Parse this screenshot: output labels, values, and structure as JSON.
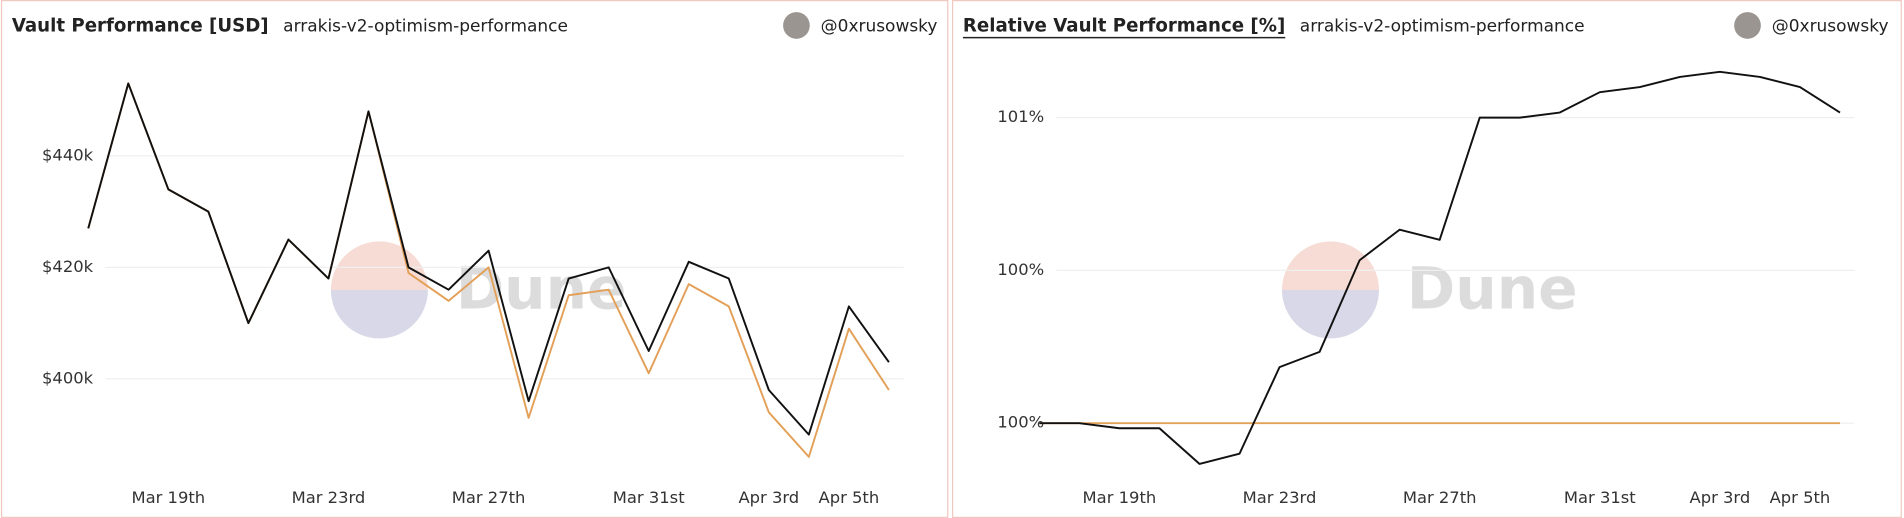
{
  "chart_data": [
    {
      "type": "line",
      "title": "Vault Performance [USD]",
      "subtitle": "arrakis-v2-optimism-performance",
      "author": "@0xrusowsky",
      "watermark": "Dune",
      "title_underline": false,
      "x": [
        "Mar 17",
        "Mar 18",
        "Mar 19",
        "Mar 20",
        "Mar 21",
        "Mar 22",
        "Mar 23",
        "Mar 24",
        "Mar 25",
        "Mar 26",
        "Mar 27",
        "Mar 28",
        "Mar 29",
        "Mar 30",
        "Mar 31",
        "Apr 1",
        "Apr 2",
        "Apr 3",
        "Apr 4",
        "Apr 5",
        "Apr 6"
      ],
      "series": [
        {
          "color": "#111111",
          "values": [
            427000,
            453000,
            434000,
            430000,
            410000,
            425000,
            418000,
            448000,
            420000,
            416000,
            423000,
            396000,
            418000,
            420000,
            405000,
            421000,
            418000,
            398000,
            390000,
            413000,
            403000
          ]
        },
        {
          "color": "#e3a059",
          "values": [
            427000,
            453000,
            434000,
            430000,
            410000,
            425000,
            418000,
            448000,
            419000,
            414000,
            420000,
            393000,
            415000,
            416000,
            401000,
            417000,
            413000,
            394000,
            386000,
            409000,
            398000
          ]
        }
      ],
      "ylim": [
        382000,
        456000
      ],
      "yticks": [
        {
          "value": 400000,
          "label": "$400k"
        },
        {
          "value": 420000,
          "label": "$420k"
        },
        {
          "value": 440000,
          "label": "$440k"
        }
      ],
      "xticks": [
        {
          "value": "Mar 19",
          "label": "Mar 19th"
        },
        {
          "value": "Mar 23",
          "label": "Mar 23rd"
        },
        {
          "value": "Mar 27",
          "label": "Mar 27th"
        },
        {
          "value": "Mar 31",
          "label": "Mar 31st"
        },
        {
          "value": "Apr 3",
          "label": "Apr 3rd"
        },
        {
          "value": "Apr 5",
          "label": "Apr 5th"
        }
      ],
      "grid": true
    },
    {
      "type": "line",
      "title": "Relative Vault Performance [%]",
      "subtitle": "arrakis-v2-optimism-performance",
      "author": "@0xrusowsky",
      "watermark": "Dune",
      "title_underline": true,
      "x": [
        "Mar 17",
        "Mar 18",
        "Mar 19",
        "Mar 20",
        "Mar 21",
        "Mar 22",
        "Mar 23",
        "Mar 24",
        "Mar 25",
        "Mar 26",
        "Mar 27",
        "Mar 28",
        "Mar 29",
        "Mar 30",
        "Mar 31",
        "Apr 1",
        "Apr 2",
        "Apr 3",
        "Apr 4",
        "Apr 5",
        "Apr 6"
      ],
      "series": [
        {
          "color": "#111111",
          "values": [
            100.0,
            100.0,
            99.99,
            99.99,
            99.92,
            99.94,
            100.11,
            100.14,
            100.32,
            100.38,
            100.36,
            100.6,
            100.6,
            100.61,
            100.65,
            100.66,
            100.68,
            100.69,
            100.68,
            100.66,
            100.61
          ]
        },
        {
          "color": "#e3a059",
          "values": [
            100,
            100,
            100,
            100,
            100,
            100,
            100,
            100,
            100,
            100,
            100,
            100,
            100,
            100,
            100,
            100,
            100,
            100,
            100,
            100,
            100
          ]
        }
      ],
      "ylim": [
        99.89,
        100.7
      ],
      "yticks": [
        {
          "value": 100,
          "label": "100%"
        },
        {
          "value": 100.3,
          "label": "100%"
        },
        {
          "value": 100.6,
          "label": "101%"
        }
      ],
      "xticks": [
        {
          "value": "Mar 19",
          "label": "Mar 19th"
        },
        {
          "value": "Mar 23",
          "label": "Mar 23rd"
        },
        {
          "value": "Mar 27",
          "label": "Mar 27th"
        },
        {
          "value": "Mar 31",
          "label": "Mar 31st"
        },
        {
          "value": "Apr 3",
          "label": "Apr 3rd"
        },
        {
          "value": "Apr 5",
          "label": "Apr 5th"
        }
      ],
      "grid": true
    }
  ]
}
